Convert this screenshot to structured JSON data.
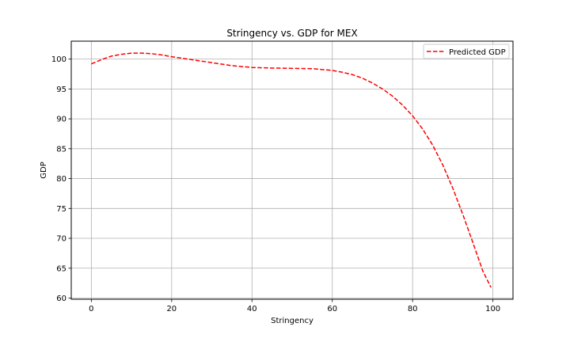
{
  "chart_data": {
    "type": "line",
    "title": "Stringency vs. GDP for MEX",
    "xlabel": "Stringency",
    "ylabel": "GDP",
    "xlim": [
      -5,
      105
    ],
    "ylim": [
      59.8,
      103
    ],
    "xticks": [
      0,
      20,
      40,
      60,
      80,
      100
    ],
    "yticks": [
      60,
      65,
      70,
      75,
      80,
      85,
      90,
      95,
      100
    ],
    "grid": true,
    "legend_position": "top-right",
    "series": [
      {
        "name": "Predicted GDP",
        "color": "#ff0000",
        "line_style": "dashed",
        "x": [
          0,
          2.5,
          5,
          7.5,
          10,
          12.5,
          15,
          17.5,
          20,
          25,
          30,
          35,
          40,
          45,
          50,
          55,
          60,
          62.5,
          65,
          67.5,
          70,
          72.5,
          75,
          77.5,
          80,
          82.5,
          85,
          87.5,
          90,
          92.5,
          95,
          97.5,
          99.5
        ],
        "y": [
          99.2,
          99.9,
          100.5,
          100.8,
          101.0,
          101.0,
          100.9,
          100.7,
          100.4,
          99.9,
          99.4,
          98.9,
          98.6,
          98.5,
          98.45,
          98.4,
          98.1,
          97.8,
          97.4,
          96.8,
          96.0,
          95.0,
          93.8,
          92.3,
          90.5,
          88.3,
          85.6,
          82.3,
          78.4,
          74.0,
          69.3,
          64.5,
          61.8
        ]
      }
    ]
  }
}
